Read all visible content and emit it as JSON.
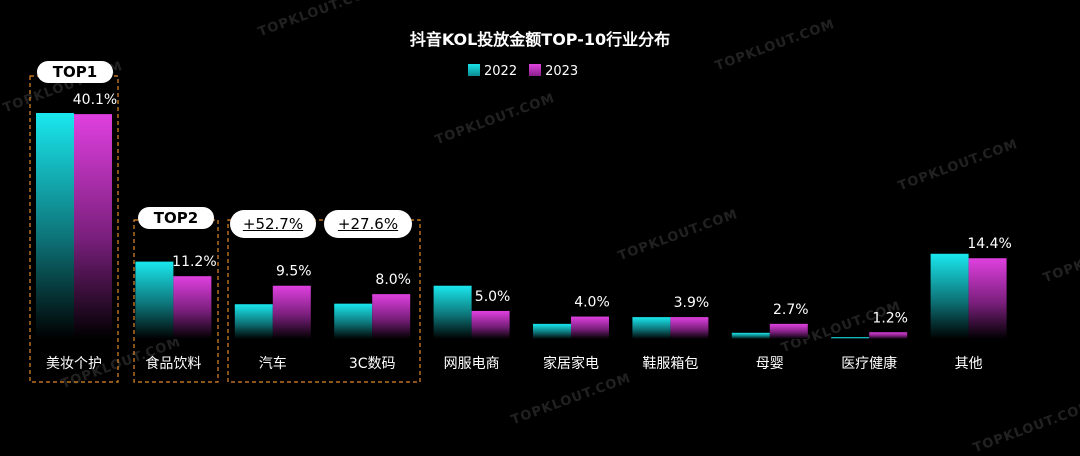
{
  "title": "抖音KOL投放金额TOP-10行业分布",
  "legend": [
    "2022",
    "2023"
  ],
  "colors": {
    "series2022": "#19e3e8",
    "series2023": "#d83ad8",
    "highlight_border": "#e0892a"
  },
  "badges": {
    "top1": "TOP1",
    "top2": "TOP2",
    "growth_auto": "+52.7%",
    "growth_3c": "+27.6%"
  },
  "watermark": "TOPKLOUT.COM",
  "chart_data": {
    "type": "bar",
    "categories": [
      "美妆个护",
      "食品饮料",
      "汽车",
      "3C数码",
      "网服电商",
      "家居家电",
      "鞋服箱包",
      "母婴",
      "医疗健康",
      "其他"
    ],
    "series": [
      {
        "name": "2022",
        "values": [
          40.3,
          13.8,
          6.2,
          6.3,
          9.5,
          2.7,
          3.9,
          1.1,
          0.3,
          15.2
        ]
      },
      {
        "name": "2023",
        "values": [
          40.1,
          11.2,
          9.5,
          8.0,
          5.0,
          4.0,
          3.9,
          2.7,
          1.2,
          14.4
        ]
      }
    ],
    "data_labels_2023": [
      "40.1%",
      "11.2%",
      "9.5%",
      "8.0%",
      "5.0%",
      "4.0%",
      "3.9%",
      "2.7%",
      "1.2%",
      "14.4%"
    ],
    "ylim": [
      0,
      40.3
    ]
  }
}
